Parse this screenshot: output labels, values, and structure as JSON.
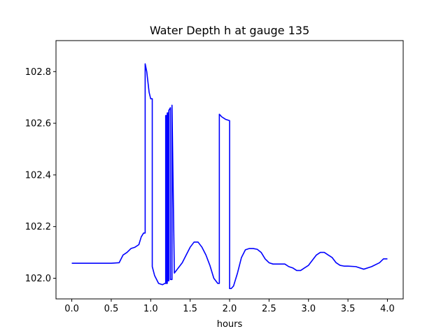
{
  "chart_data": {
    "type": "line",
    "title": "Water Depth h at gauge 135",
    "xlabel": "hours",
    "ylabel": "",
    "xlim": [
      -0.2,
      4.2
    ],
    "ylim": [
      101.92,
      102.92
    ],
    "xticks": [
      0.0,
      0.5,
      1.0,
      1.5,
      2.0,
      2.5,
      3.0,
      3.5,
      4.0
    ],
    "xtick_labels": [
      "0.0",
      "0.5",
      "1.0",
      "1.5",
      "2.0",
      "2.5",
      "3.0",
      "3.5",
      "4.0"
    ],
    "yticks": [
      102.0,
      102.2,
      102.4,
      102.6,
      102.8
    ],
    "ytick_labels": [
      "102.0",
      "102.2",
      "102.4",
      "102.6",
      "102.8"
    ],
    "grid": false,
    "series": [
      {
        "color": "#0000ff",
        "x": [
          0.0,
          0.2,
          0.4,
          0.5,
          0.6,
          0.65,
          0.7,
          0.75,
          0.8,
          0.85,
          0.88,
          0.91,
          0.93,
          0.93,
          0.95,
          0.98,
          1.0,
          1.02,
          1.02,
          1.05,
          1.1,
          1.15,
          1.18,
          1.19,
          1.19,
          1.2,
          1.2,
          1.21,
          1.21,
          1.22,
          1.22,
          1.23,
          1.23,
          1.25,
          1.25,
          1.27,
          1.27,
          1.3,
          1.35,
          1.4,
          1.45,
          1.5,
          1.55,
          1.6,
          1.65,
          1.7,
          1.75,
          1.8,
          1.85,
          1.87,
          1.87,
          1.9,
          1.95,
          2.0,
          2.0,
          2.02,
          2.05,
          2.1,
          2.15,
          2.2,
          2.25,
          2.3,
          2.35,
          2.4,
          2.45,
          2.5,
          2.55,
          2.6,
          2.7,
          2.75,
          2.8,
          2.85,
          2.9,
          2.95,
          3.0,
          3.05,
          3.1,
          3.15,
          3.2,
          3.25,
          3.3,
          3.35,
          3.4,
          3.45,
          3.5,
          3.6,
          3.7,
          3.8,
          3.9,
          3.95,
          4.0
        ],
        "y": [
          102.058,
          102.058,
          102.058,
          102.058,
          102.06,
          102.09,
          102.1,
          102.115,
          102.12,
          102.13,
          102.16,
          102.175,
          102.175,
          102.83,
          102.8,
          102.72,
          102.695,
          102.695,
          102.045,
          102.01,
          101.98,
          101.975,
          101.98,
          101.98,
          102.63,
          102.63,
          101.98,
          101.98,
          102.64,
          102.64,
          101.99,
          101.99,
          102.65,
          102.66,
          101.995,
          101.995,
          102.67,
          102.02,
          102.04,
          102.06,
          102.09,
          102.12,
          102.14,
          102.14,
          102.12,
          102.09,
          102.05,
          102.0,
          101.98,
          101.98,
          102.635,
          102.625,
          102.615,
          102.61,
          101.96,
          101.96,
          101.97,
          102.02,
          102.08,
          102.11,
          102.115,
          102.115,
          102.112,
          102.1,
          102.075,
          102.06,
          102.055,
          102.055,
          102.055,
          102.045,
          102.04,
          102.03,
          102.03,
          102.04,
          102.05,
          102.07,
          102.09,
          102.1,
          102.1,
          102.09,
          102.08,
          102.06,
          102.05,
          102.047,
          102.047,
          102.045,
          102.035,
          102.045,
          102.06,
          102.075,
          102.075
        ]
      }
    ]
  }
}
